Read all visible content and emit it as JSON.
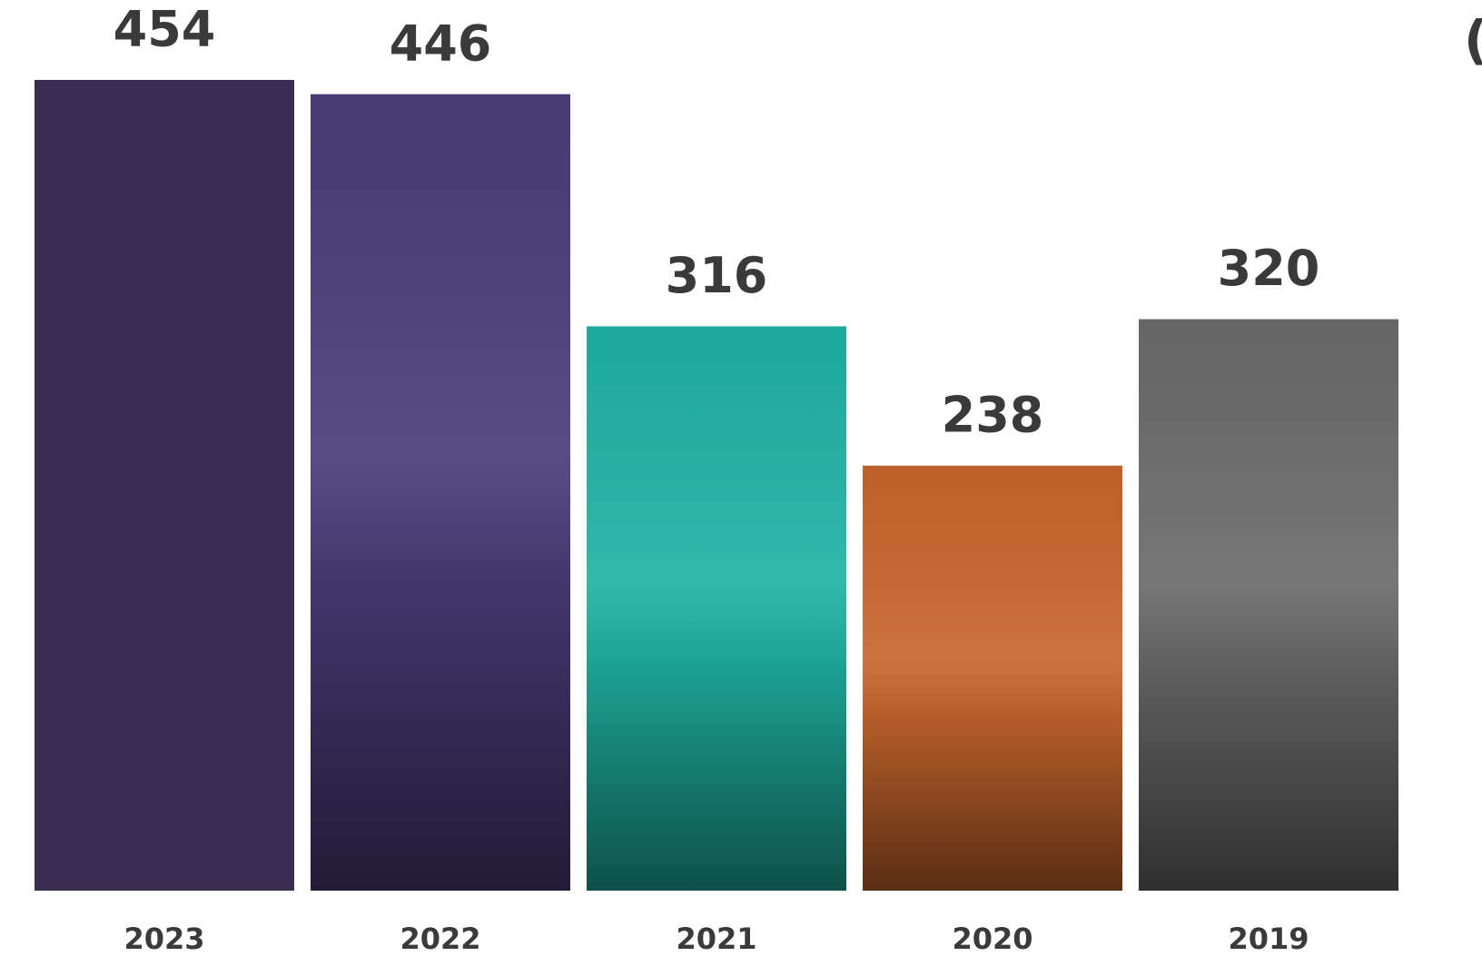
{
  "chart_data": {
    "type": "bar",
    "title": "(مليار ريال)",
    "categories": [
      "2023",
      "2022",
      "2021",
      "2020",
      "2019"
    ],
    "values": [
      454,
      446,
      316,
      238,
      320
    ],
    "colors": [
      "#3b2c52",
      "#4b3d7a",
      "#1fb3a3",
      "#c8662d",
      "#6b6b6b"
    ]
  }
}
